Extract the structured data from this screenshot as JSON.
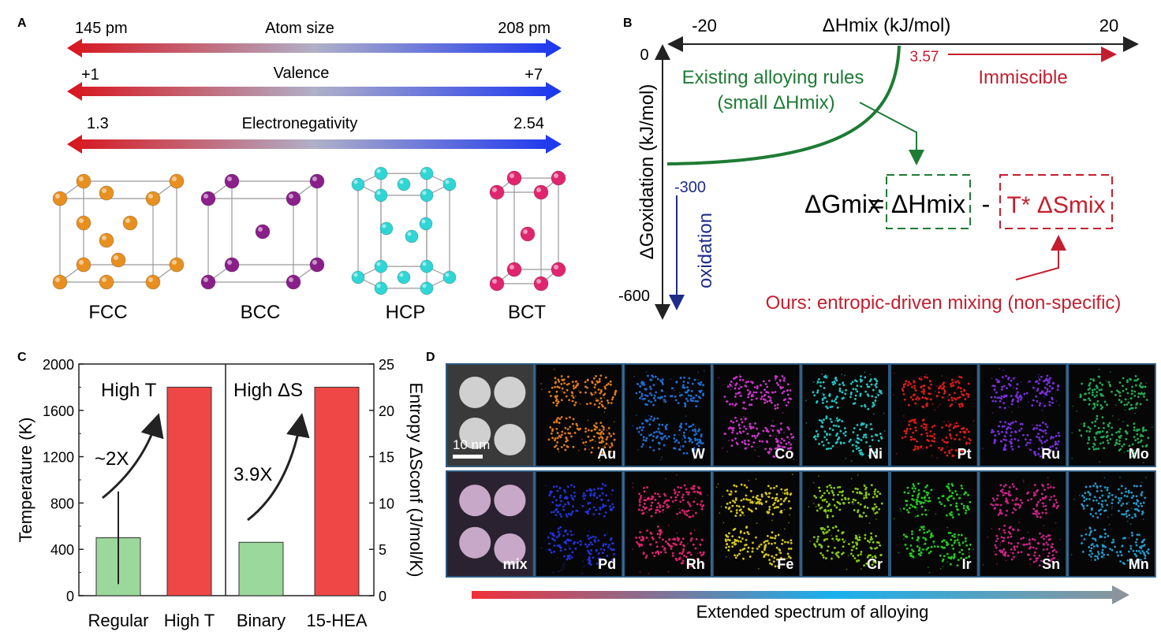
{
  "panel_a": {
    "label": "A",
    "arrows": [
      {
        "left": "145 pm",
        "mid": "Atom size",
        "right": "208 pm"
      },
      {
        "left": "+1",
        "mid": "Valence",
        "right": "+7"
      },
      {
        "left": "1.3",
        "mid": "Electronegativity",
        "right": "2.54"
      }
    ],
    "structures": [
      {
        "name": "FCC",
        "color": "#e8901f"
      },
      {
        "name": "BCC",
        "color": "#8a1f8a"
      },
      {
        "name": "HCP",
        "color": "#2fd6d6"
      },
      {
        "name": "BCT",
        "color": "#e0256e"
      }
    ]
  },
  "panel_b": {
    "label": "B",
    "x_axis_title": "ΔHmix (kJ/mol)",
    "x_left": "-20",
    "x_right": "20",
    "y_axis_title": "ΔGoxidation (kJ/mol)",
    "y_top": "0",
    "y_mid": "-300",
    "y_bottom": "-600",
    "threshold": "3.57",
    "immiscible": "Immiscible",
    "rules_line1": "Existing alloying rules",
    "rules_line2": "(small ΔHmix)",
    "oxidation": "oxidation",
    "eq_lhs": "ΔGmix",
    "eq_h": "ΔHmix",
    "eq_minus": "-",
    "eq_ts": "T* ΔSmix",
    "ours": "Ours: entropic-driven mixing (non-specific)",
    "colors": {
      "green": "#1e7b34",
      "red": "#c41e2e",
      "blue": "#1f2c8a"
    }
  },
  "panel_c": {
    "label": "C",
    "ylabel_left": "Temperature (K)",
    "ylabel_right": "Entropy ΔSconf (J/mol/K)",
    "left_ticks": [
      "0",
      "400",
      "800",
      "1200",
      "1600",
      "2000"
    ],
    "right_ticks": [
      "0",
      "5",
      "10",
      "15",
      "20",
      "25"
    ],
    "ann_high_t": "High T",
    "ann_high_s": "High ΔS",
    "ann_2x": "~2X",
    "ann_39x": "3.9X"
  },
  "chart_data": {
    "type": "bar",
    "categories": [
      "Regular",
      "High T",
      "Binary",
      "15-HEA"
    ],
    "series": [
      {
        "name": "Temperature (K)",
        "axis": "left",
        "values": [
          500,
          1800,
          null,
          null
        ],
        "error": [
          400,
          null,
          null,
          null
        ]
      },
      {
        "name": "Entropy ΔSconf (J/mol/K)",
        "axis": "right",
        "values": [
          null,
          null,
          5.76,
          22.5
        ]
      }
    ],
    "ylim_left": [
      0,
      2000
    ],
    "ylim_right": [
      0,
      25
    ],
    "colors": {
      "low": "#9bd89b",
      "high": "#ef4646"
    }
  },
  "panel_d": {
    "label": "D",
    "scale_bar": "10 nm",
    "row1": [
      {
        "el": "",
        "color": "#9a9a9a"
      },
      {
        "el": "Au",
        "color": "#e07a1a"
      },
      {
        "el": "W",
        "color": "#1e6fd6"
      },
      {
        "el": "Co",
        "color": "#cc33cc"
      },
      {
        "el": "Ni",
        "color": "#22c4c4"
      },
      {
        "el": "Pt",
        "color": "#e01a1a"
      },
      {
        "el": "Ru",
        "color": "#7a2ee0"
      },
      {
        "el": "Mo",
        "color": "#22aa55"
      }
    ],
    "row2": [
      {
        "el": "mix",
        "color": "#b8a0b8"
      },
      {
        "el": "Pd",
        "color": "#2233dd"
      },
      {
        "el": "Rh",
        "color": "#e0226e"
      },
      {
        "el": "Fe",
        "color": "#d6c81a"
      },
      {
        "el": "Cr",
        "color": "#88cc11"
      },
      {
        "el": "Ir",
        "color": "#22cc22"
      },
      {
        "el": "Sn",
        "color": "#cc2288"
      },
      {
        "el": "Mn",
        "color": "#2299cc"
      }
    ],
    "spectrum": "Extended spectrum of alloying"
  }
}
